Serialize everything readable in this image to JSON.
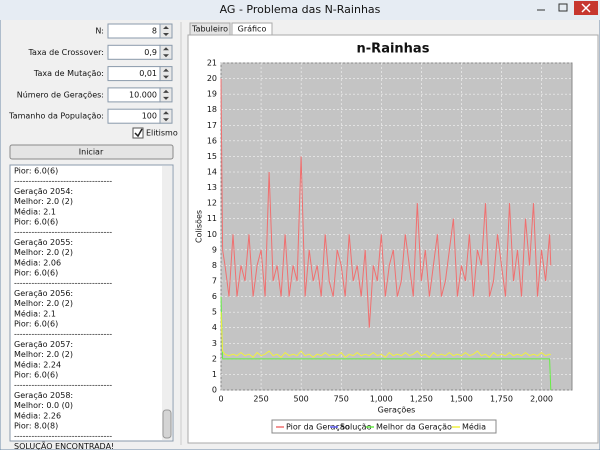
{
  "window": {
    "title": "AG - Problema das N-Rainhas"
  },
  "form": {
    "fields": [
      {
        "label": "N:",
        "value": "8"
      },
      {
        "label": "Taxa de Crossover:",
        "value": "0,9"
      },
      {
        "label": "Taxa de Mutação:",
        "value": "0,01"
      },
      {
        "label": "Número de Gerações:",
        "value": "10.000"
      },
      {
        "label": "Tamanho da População:",
        "value": "100"
      }
    ],
    "checkbox": "Elitismo",
    "button": "Iniciar"
  },
  "log": [
    "Pior: 6.0(6)",
    "----------------------------------",
    "Geração 2054:",
    "Melhor: 2.0 (2)",
    "Média: 2.1",
    "Pior: 6.0(6)",
    "----------------------------------",
    "Geração 2055:",
    "Melhor: 2.0 (2)",
    "Média: 2.06",
    "Pior: 6.0(6)",
    "----------------------------------",
    "Geração 2056:",
    "Melhor: 2.0 (2)",
    "Média: 2.1",
    "Pior: 6.0(6)",
    "----------------------------------",
    "Geração 2057:",
    "Melhor: 2.0 (2)",
    "Média: 2.24",
    "Pior: 6.0(6)",
    "----------------------------------",
    "Geração 2058:",
    "Melhor: 0.0 (0)",
    "Média: 2.26",
    "Pior: 8.0(8)",
    "----------------------------------",
    "SOLUÇÃO ENCONTRADA!"
  ],
  "tabs": [
    "Tabuleiro",
    "Gráfico"
  ],
  "chart_data": {
    "type": "line",
    "title": "n-Rainhas",
    "x_label": "Gerações",
    "y_label": "Colisões",
    "x": [
      0,
      10,
      25,
      50,
      75,
      100,
      125,
      150,
      175,
      200,
      225,
      250,
      275,
      300,
      325,
      350,
      375,
      400,
      425,
      450,
      475,
      500,
      525,
      550,
      575,
      600,
      625,
      650,
      675,
      700,
      725,
      750,
      775,
      800,
      825,
      850,
      875,
      900,
      925,
      950,
      975,
      1000,
      1025,
      1050,
      1075,
      1100,
      1125,
      1150,
      1175,
      1200,
      1225,
      1250,
      1275,
      1300,
      1325,
      1350,
      1375,
      1400,
      1425,
      1450,
      1475,
      1500,
      1525,
      1550,
      1575,
      1600,
      1625,
      1650,
      1675,
      1700,
      1725,
      1750,
      1775,
      1800,
      1825,
      1850,
      1875,
      1900,
      1925,
      1950,
      1975,
      2000,
      2025,
      2050,
      2058
    ],
    "xlim": [
      0,
      2190
    ],
    "xticks": [
      0,
      250,
      500,
      750,
      {
        "value": 1000,
        "label": "1,000"
      },
      {
        "value": 1250,
        "label": "1,250"
      },
      {
        "value": 1500,
        "label": "1,500"
      },
      {
        "value": 1750,
        "label": "1,750"
      },
      {
        "value": 2000,
        "label": "2,000"
      }
    ],
    "ylim": [
      0,
      21
    ],
    "yticks": [
      0,
      1,
      2,
      3,
      4,
      5,
      6,
      7,
      8,
      9,
      10,
      11,
      12,
      13,
      14,
      15,
      16,
      17,
      18,
      19,
      20,
      21
    ],
    "grid": true,
    "series": [
      {
        "name": "Pior da Geração",
        "color": "#f07070",
        "values": [
          20,
          9,
          8,
          6,
          10,
          6,
          8,
          7,
          10,
          6,
          8,
          9,
          6,
          14,
          7,
          8,
          6,
          10,
          6,
          8,
          7,
          15,
          6,
          9,
          7,
          8,
          6,
          10,
          7,
          6,
          9,
          8,
          6,
          10,
          7,
          8,
          6,
          9,
          4,
          8,
          7,
          10,
          6,
          8,
          9,
          6,
          7,
          10,
          8,
          6,
          12,
          7,
          9,
          6,
          8,
          10,
          6,
          7,
          9,
          11,
          6,
          8,
          7,
          10,
          6,
          9,
          8,
          12,
          6,
          7,
          10,
          8,
          6,
          12,
          7,
          9,
          6,
          11,
          8,
          12,
          6,
          9,
          7,
          10,
          8
        ]
      },
      {
        "name": "Solução",
        "color": "#6060f0",
        "values": [
          null,
          null,
          null,
          null,
          null,
          null,
          null,
          null,
          null,
          null,
          null,
          null,
          null,
          null,
          null,
          null,
          null,
          null,
          null,
          null,
          null,
          null,
          null,
          null,
          null,
          null,
          null,
          null,
          null,
          null,
          null,
          null,
          null,
          null,
          null,
          null,
          null,
          null,
          null,
          null,
          null,
          null,
          null,
          null,
          null,
          null,
          null,
          null,
          null,
          null,
          null,
          null,
          null,
          null,
          null,
          null,
          null,
          null,
          null,
          null,
          null,
          null,
          null,
          null,
          null,
          null,
          null,
          null,
          null,
          null,
          null,
          null,
          null,
          null,
          null,
          null,
          null,
          null,
          null,
          null,
          null,
          null,
          null,
          null,
          0
        ]
      },
      {
        "name": "Melhor da Geração",
        "color": "#66ee44",
        "values": [
          6,
          2,
          2,
          2,
          2,
          2,
          2,
          2,
          2,
          2,
          2,
          2,
          2,
          2,
          2,
          2,
          2,
          2,
          2,
          2,
          2,
          2,
          2,
          2,
          2,
          2,
          2,
          2,
          2,
          2,
          2,
          2,
          2,
          2,
          2,
          2,
          2,
          2,
          2,
          2,
          2,
          2,
          2,
          2,
          2,
          2,
          2,
          2,
          2,
          2,
          2,
          2,
          2,
          2,
          2,
          2,
          2,
          2,
          2,
          2,
          2,
          2,
          2,
          2,
          2,
          2,
          2,
          2,
          2,
          2,
          2,
          2,
          2,
          2,
          2,
          2,
          2,
          2,
          2,
          2,
          2,
          2,
          2,
          2,
          0
        ]
      },
      {
        "name": "Média",
        "color": "#f0f040",
        "values": [
          5,
          2.5,
          2.3,
          2.2,
          2.3,
          2.2,
          2.4,
          2.2,
          2.3,
          2.1,
          2.4,
          2.2,
          2.3,
          2.5,
          2.2,
          2.3,
          2.1,
          2.4,
          2.2,
          2.3,
          2.2,
          2.5,
          2.2,
          2.3,
          2.1,
          2.3,
          2.2,
          2.4,
          2.2,
          2.3,
          2.2,
          2.4,
          2.1,
          2.3,
          2.2,
          2.4,
          2.2,
          2.3,
          2.2,
          2.4,
          2.2,
          2.3,
          2.1,
          2.4,
          2.2,
          2.3,
          2.2,
          2.4,
          2.2,
          2.3,
          2.5,
          2.2,
          2.3,
          2.1,
          2.4,
          2.2,
          2.3,
          2.2,
          2.4,
          2.2,
          2.3,
          2.2,
          2.4,
          2.2,
          2.3,
          2.5,
          2.2,
          2.3,
          2.1,
          2.4,
          2.2,
          2.3,
          2.2,
          2.4,
          2.2,
          2.3,
          2.2,
          2.4,
          2.2,
          2.3,
          2.2,
          2.4,
          2.2,
          2.3,
          2.26
        ]
      }
    ]
  }
}
